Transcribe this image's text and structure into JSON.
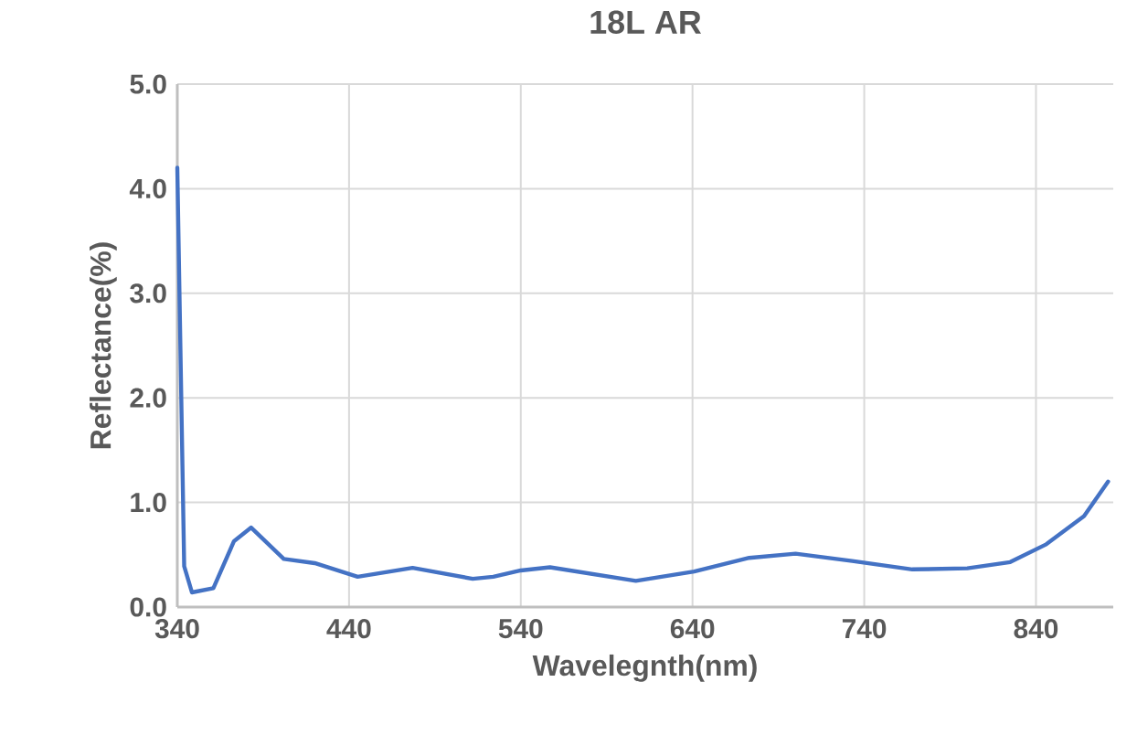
{
  "chart_data": {
    "type": "line",
    "title": "18L AR",
    "xlabel": "Wavelegnth(nm)",
    "ylabel": "Reflectance(%)",
    "x": [
      340,
      344,
      348.5,
      361,
      373,
      383,
      402,
      420,
      445,
      477,
      512,
      524,
      540,
      557,
      607,
      641,
      673,
      700,
      733,
      768,
      800,
      825,
      846,
      868,
      882
    ],
    "series": [
      {
        "color": "#4472c4",
        "values": [
          4.2,
          0.39,
          0.14,
          0.18,
          0.63,
          0.76,
          0.46,
          0.42,
          0.29,
          0.375,
          0.27,
          0.29,
          0.35,
          0.38,
          0.25,
          0.34,
          0.47,
          0.51,
          0.44,
          0.36,
          0.37,
          0.43,
          0.6,
          0.87,
          1.2
        ]
      }
    ],
    "xlim": [
      340,
      885
    ],
    "ylim": [
      0,
      5
    ],
    "xticks": [
      340,
      440,
      540,
      640,
      740,
      840
    ],
    "yticks": [
      {
        "value": 0,
        "label": "0.0"
      },
      {
        "value": 1,
        "label": "1.0"
      },
      {
        "value": 2,
        "label": "2.0"
      },
      {
        "value": 3,
        "label": "3.0"
      },
      {
        "value": 4,
        "label": "4.0"
      },
      {
        "value": 5,
        "label": "5.0"
      }
    ],
    "grid": true
  }
}
